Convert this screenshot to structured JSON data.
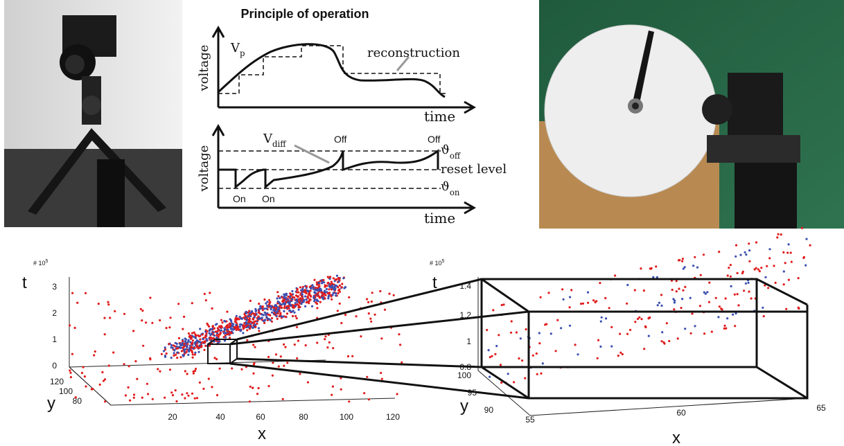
{
  "diagram": {
    "title": "Principle of operation",
    "top": {
      "ylabel": "voltage",
      "xlabel": "time",
      "vp": {
        "base": "V",
        "sub": "p"
      },
      "reconstruction": "reconstruction"
    },
    "bottom": {
      "ylabel": "voltage",
      "xlabel": "time",
      "vdiff": {
        "base": "V",
        "sub": "diff"
      },
      "events": [
        "On",
        "On",
        "Off",
        "Off"
      ],
      "theta_off": {
        "base": "ϑ",
        "sub": "off"
      },
      "reset": "reset level",
      "theta_on": {
        "base": "ϑ",
        "sub": "on"
      }
    }
  },
  "plot_left": {
    "scale": {
      "base": "# 10",
      "sup": "5"
    },
    "t_label": "t",
    "y_label": "y",
    "x_label": "x",
    "t_ticks": [
      "0",
      "1",
      "2",
      "3"
    ],
    "y_ticks": [
      "120",
      "100",
      "80"
    ],
    "x_ticks": [
      "20",
      "40",
      "60",
      "80",
      "100",
      "120"
    ]
  },
  "plot_right": {
    "scale": {
      "base": "# 10",
      "sup": "5"
    },
    "t_label": "t",
    "y_label": "y",
    "x_label": "x",
    "t_ticks": [
      "0.8",
      "1",
      "1.2",
      "1.4"
    ],
    "y_ticks": [
      "100",
      "95",
      "90"
    ],
    "x_ticks": [
      "55",
      "60",
      "65"
    ]
  }
}
